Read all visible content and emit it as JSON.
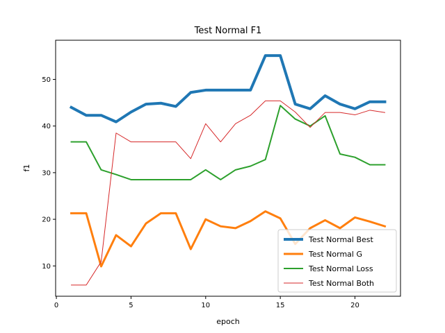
{
  "chart_data": {
    "type": "line",
    "title": "Test Normal F1",
    "xlabel": "epoch",
    "ylabel": "f1",
    "xlim": [
      -0.05,
      23.05
    ],
    "ylim": [
      3.5,
      58.4
    ],
    "xticks": [
      0,
      5,
      10,
      15,
      20
    ],
    "yticks": [
      10,
      20,
      30,
      40,
      50
    ],
    "grid": false,
    "legend_position": "lower right",
    "x": [
      1,
      2,
      3,
      4,
      5,
      6,
      7,
      8,
      9,
      10,
      11,
      12,
      13,
      14,
      15,
      16,
      17,
      18,
      19,
      20,
      21,
      22
    ],
    "series": [
      {
        "name": "Test Normal Best",
        "color": "#1f77b4",
        "values": [
          44.0,
          42.3,
          42.3,
          40.9,
          43.0,
          44.7,
          44.9,
          44.2,
          47.2,
          47.7,
          47.7,
          47.7,
          47.7,
          55.1,
          55.1,
          44.7,
          43.7,
          46.5,
          44.7,
          43.7,
          45.2,
          45.2
        ]
      },
      {
        "name": "Test Normal G",
        "color": "#ff7f0e",
        "values": [
          21.3,
          21.3,
          9.9,
          16.6,
          14.2,
          19.1,
          21.3,
          21.3,
          13.6,
          20.0,
          18.5,
          18.1,
          19.6,
          21.7,
          20.2,
          14.7,
          18.1,
          19.8,
          18.1,
          20.4,
          19.5,
          18.5
        ]
      },
      {
        "name": "Test Normal Loss",
        "color": "#2ca02c",
        "values": [
          36.6,
          36.6,
          30.6,
          29.6,
          28.5,
          28.5,
          28.5,
          28.5,
          28.5,
          30.6,
          28.5,
          30.6,
          31.4,
          32.8,
          44.4,
          41.5,
          40.0,
          42.2,
          34.0,
          33.3,
          31.7,
          31.7
        ]
      },
      {
        "name": "Test Normal Both",
        "color": "#d62728",
        "values": [
          5.9,
          5.9,
          10.9,
          38.5,
          36.6,
          36.6,
          36.6,
          36.6,
          33.0,
          40.5,
          36.6,
          40.5,
          42.3,
          45.4,
          45.4,
          43.0,
          39.7,
          42.9,
          42.9,
          42.4,
          43.4,
          42.9
        ]
      }
    ]
  }
}
